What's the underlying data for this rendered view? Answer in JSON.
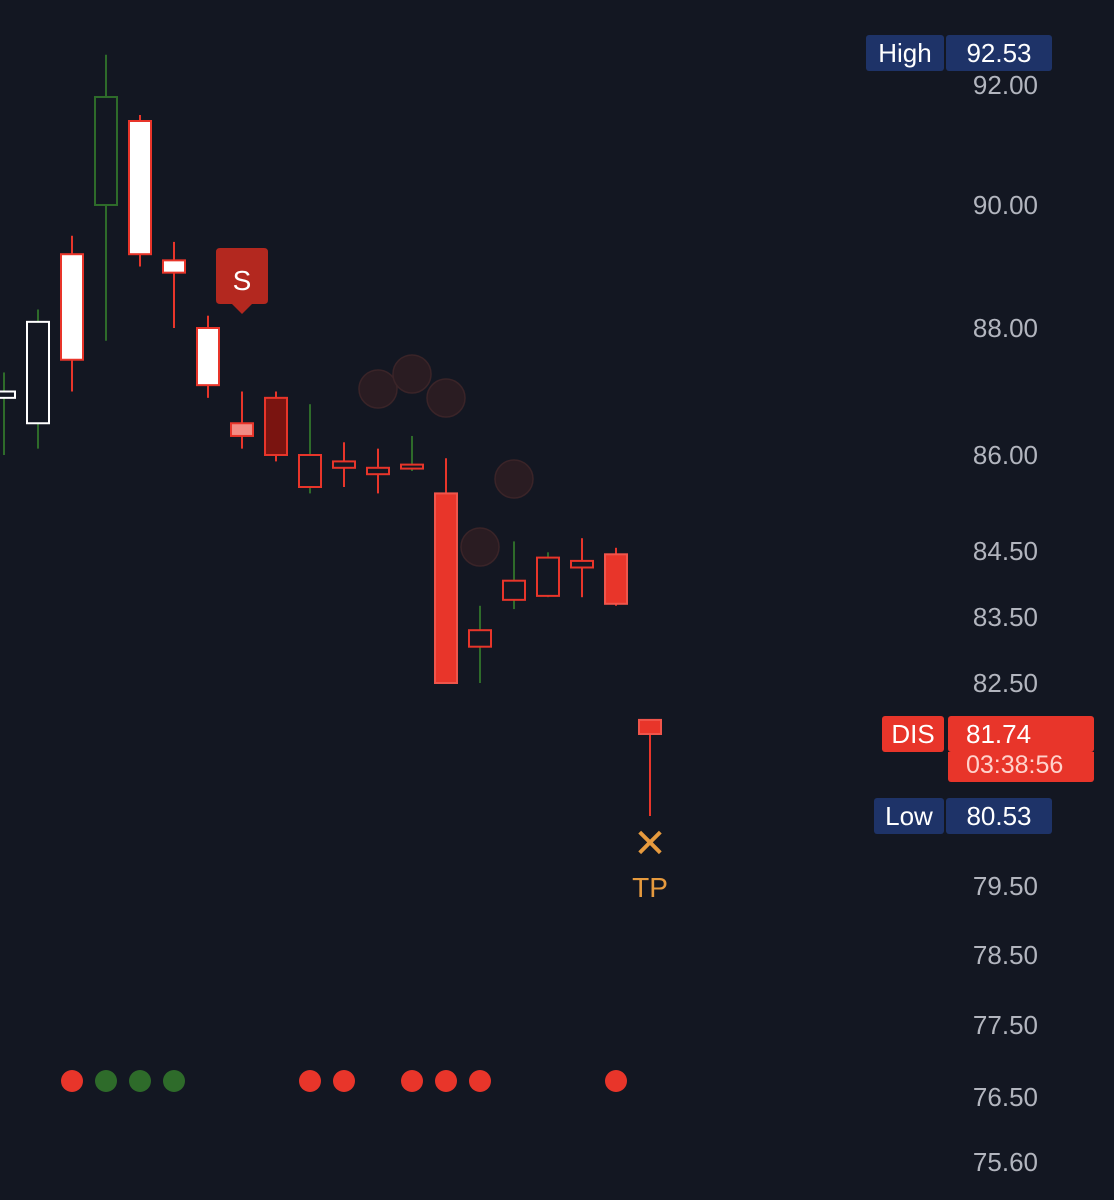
{
  "chart_data": {
    "type": "candlestick",
    "ticker": "DIS",
    "last_price": "81.74",
    "countdown": "03:38:56",
    "high": {
      "label": "High",
      "value": "92.53"
    },
    "low": {
      "label": "Low",
      "value": "80.53"
    },
    "y_ticks": [
      "92.00",
      "90.00",
      "88.00",
      "86.00",
      "84.50",
      "83.50",
      "82.50",
      "79.50",
      "78.50",
      "77.50",
      "76.50",
      "75.60"
    ],
    "candles": [
      {
        "open": 86.9,
        "high": 87.3,
        "low": 86.0,
        "close": 87.0,
        "style": "white-hollow",
        "wick": "green"
      },
      {
        "open": 86.5,
        "high": 88.3,
        "low": 86.1,
        "close": 88.1,
        "style": "white-hollow",
        "wick": "green"
      },
      {
        "open": 87.5,
        "high": 89.5,
        "low": 87.0,
        "close": 89.2,
        "style": "white-filled",
        "wick": "red"
      },
      {
        "open": 90.0,
        "high": 92.5,
        "low": 87.8,
        "close": 91.8,
        "style": "green-hollow",
        "wick": "green"
      },
      {
        "open": 91.4,
        "high": 91.5,
        "low": 89.0,
        "close": 89.2,
        "style": "white-filled",
        "wick": "red"
      },
      {
        "open": 89.1,
        "high": 89.4,
        "low": 88.0,
        "close": 88.9,
        "style": "white-filled",
        "wick": "red"
      },
      {
        "open": 88.0,
        "high": 88.2,
        "low": 86.9,
        "close": 87.1,
        "style": "white-filled",
        "wick": "red"
      },
      {
        "open": 86.5,
        "high": 87.0,
        "low": 86.1,
        "close": 86.3,
        "style": "pink-filled",
        "wick": "red"
      },
      {
        "open": 86.9,
        "high": 87.0,
        "low": 85.9,
        "close": 86.0,
        "style": "dark-red-filled",
        "wick": "red"
      },
      {
        "open": 86.0,
        "high": 86.8,
        "low": 85.4,
        "close": 85.5,
        "style": "red-hollow",
        "wick": "green"
      },
      {
        "open": 85.9,
        "high": 86.2,
        "low": 85.5,
        "close": 85.8,
        "style": "red-hollow",
        "wick": "red"
      },
      {
        "open": 85.8,
        "high": 86.1,
        "low": 85.4,
        "close": 85.7,
        "style": "red-hollow",
        "wick": "red"
      },
      {
        "open": 85.85,
        "high": 86.3,
        "low": 85.75,
        "close": 85.82,
        "style": "red-hollow",
        "wick": "green"
      },
      {
        "open": 85.4,
        "high": 85.95,
        "low": 82.5,
        "close": 82.5,
        "style": "red-filled",
        "wick": "red"
      },
      {
        "open": 83.3,
        "high": 83.67,
        "low": 82.5,
        "close": 83.05,
        "style": "red-hollow",
        "wick": "green"
      },
      {
        "open": 84.05,
        "high": 84.65,
        "low": 83.62,
        "close": 83.76,
        "style": "red-hollow",
        "wick": "green"
      },
      {
        "open": 84.4,
        "high": 84.48,
        "low": 83.8,
        "close": 83.82,
        "style": "red-hollow",
        "wick": "green"
      },
      {
        "open": 84.35,
        "high": 84.7,
        "low": 83.8,
        "close": 84.25,
        "style": "red-hollow",
        "wick": "red"
      },
      {
        "open": 84.45,
        "high": 84.55,
        "low": 83.67,
        "close": 83.7,
        "style": "red-filled",
        "wick": "red"
      },
      {
        "open": 81.95,
        "high": 81.95,
        "low": 80.53,
        "close": 81.74,
        "style": "red-filled",
        "wick": "red"
      }
    ],
    "signals": {
      "sell_label": "S",
      "tp_label": "TP"
    },
    "indicator_dots": [
      {
        "index": 2,
        "color": "red"
      },
      {
        "index": 3,
        "color": "green"
      },
      {
        "index": 4,
        "color": "green"
      },
      {
        "index": 5,
        "color": "green"
      },
      {
        "index": 9,
        "color": "red"
      },
      {
        "index": 10,
        "color": "red"
      },
      {
        "index": 12,
        "color": "red"
      },
      {
        "index": 13,
        "color": "red"
      },
      {
        "index": 14,
        "color": "red"
      },
      {
        "index": 18,
        "color": "red"
      }
    ]
  },
  "colors": {
    "background": "#131722",
    "red": "#e8352a",
    "green": "#2e6b2a",
    "navy": "#1e3368",
    "orange": "#e69a3e",
    "axis_text": "#b2b5be"
  }
}
